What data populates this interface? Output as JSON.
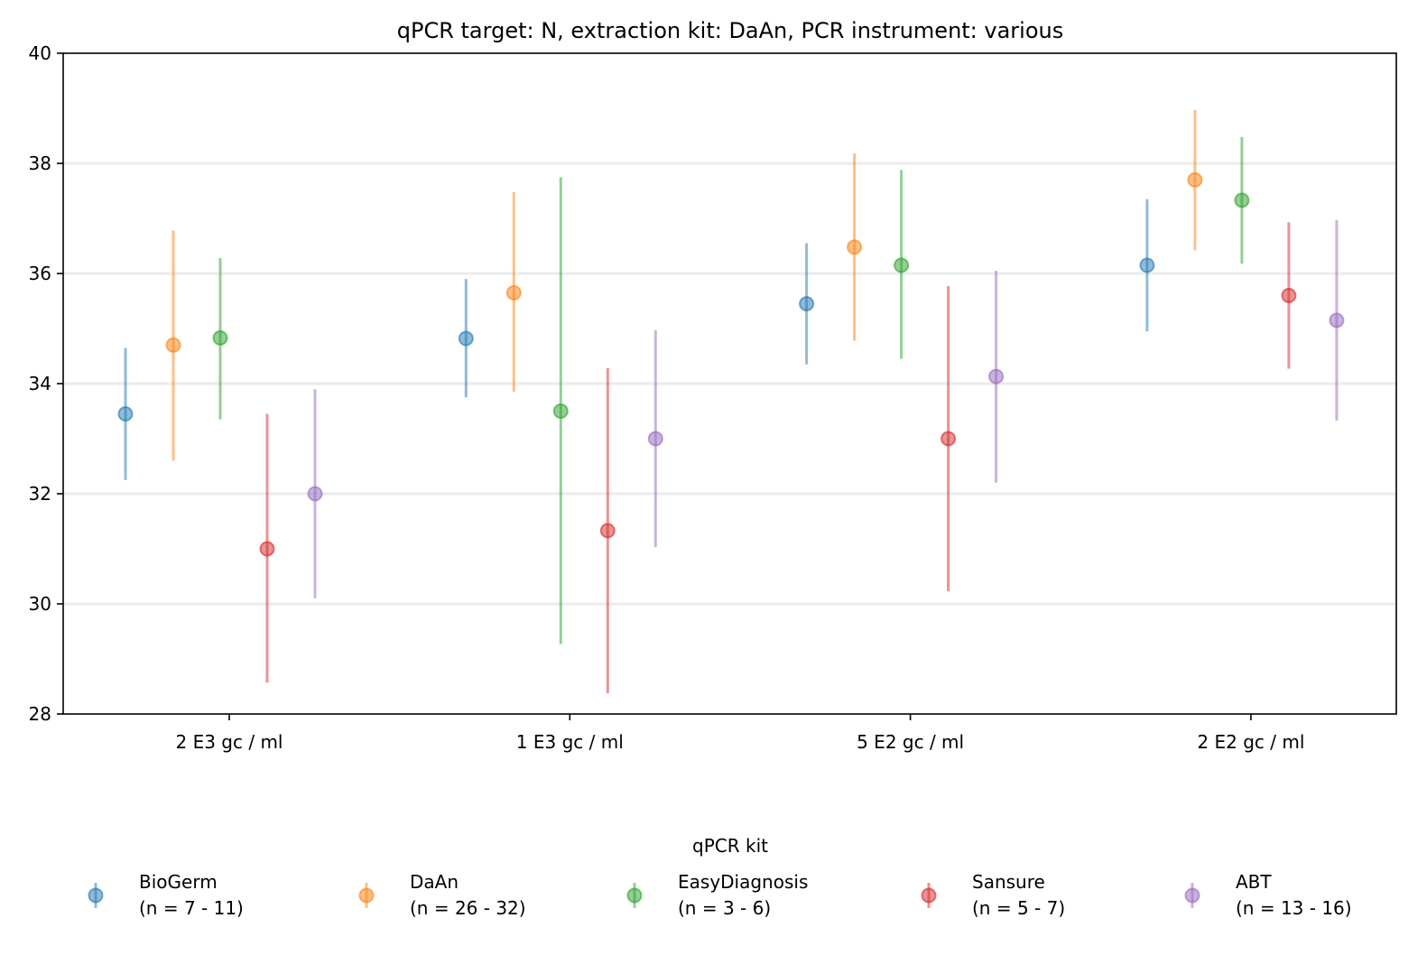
{
  "chart_data": {
    "type": "scatter",
    "title": "qPCR target: N, extraction kit: DaAn, PCR instrument: various",
    "xlabel": "",
    "ylabel": "",
    "ylim": [
      28,
      40
    ],
    "yticks": [
      28,
      30,
      32,
      34,
      36,
      38,
      40
    ],
    "categories": [
      "2 E3 gc / ml",
      "1 E3 gc / ml",
      "5 E2 gc / ml",
      "2 E2 gc / ml"
    ],
    "grid": "horizontal",
    "legend": {
      "title": "qPCR kit",
      "placement": "bottom"
    },
    "series": [
      {
        "name": "BioGerm",
        "legend_count": "(n = 7 - 11)",
        "color": "#1f77b4",
        "values": [
          33.45,
          34.82,
          35.45,
          36.15
        ],
        "lower": [
          32.25,
          33.75,
          34.35,
          34.95
        ],
        "upper": [
          34.65,
          35.9,
          36.55,
          37.35
        ]
      },
      {
        "name": "DaAn",
        "legend_count": "(n = 26 - 32)",
        "color": "#ff7f0e",
        "values": [
          34.7,
          35.65,
          36.48,
          37.7
        ],
        "lower": [
          32.6,
          33.85,
          34.78,
          36.42
        ],
        "upper": [
          36.78,
          37.48,
          38.18,
          38.97
        ]
      },
      {
        "name": "EasyDiagnosis",
        "legend_count": "(n = 3 - 6)",
        "color": "#2ca02c",
        "values": [
          34.83,
          33.5,
          36.15,
          37.33
        ],
        "lower": [
          33.35,
          29.27,
          34.45,
          36.18
        ],
        "upper": [
          36.28,
          37.75,
          37.88,
          38.48
        ]
      },
      {
        "name": "Sansure",
        "legend_count": "(n = 5 - 7)",
        "color": "#d62728",
        "values": [
          31.0,
          31.33,
          33.0,
          35.6
        ],
        "lower": [
          28.57,
          28.38,
          30.23,
          34.27
        ],
        "upper": [
          33.45,
          34.28,
          35.77,
          36.93
        ]
      },
      {
        "name": "ABT",
        "legend_count": "(n = 13 - 16)",
        "color": "#9467bd",
        "values": [
          32.0,
          33.0,
          34.13,
          35.15
        ],
        "lower": [
          30.1,
          31.03,
          32.2,
          33.33
        ],
        "upper": [
          33.9,
          34.97,
          36.05,
          36.97
        ]
      }
    ]
  }
}
